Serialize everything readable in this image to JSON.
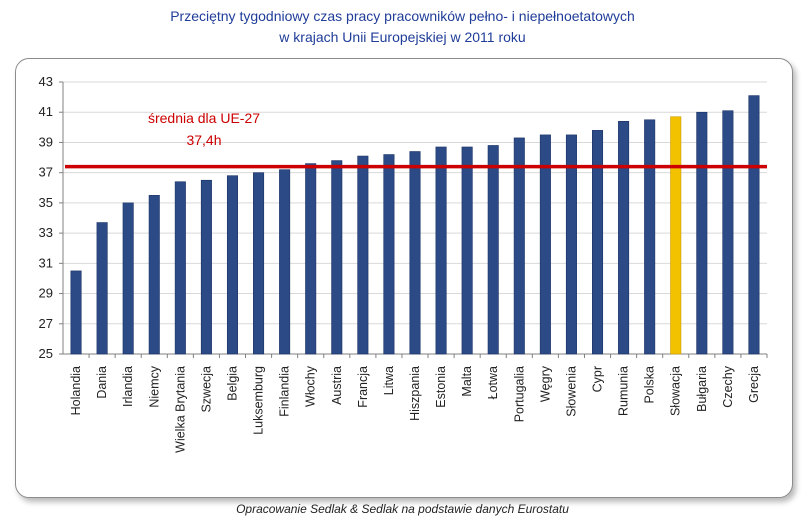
{
  "chart_data": {
    "type": "bar",
    "title_line1": "Przeciętny tygodniowy  czas pracy pracowników  pełno- i niepełnoetatowych",
    "title_line2": "w krajach Unii  Europejskiej  w 2011 roku",
    "categories": [
      "Holandia",
      "Dania",
      "Irlandia",
      "Niemcy",
      "Wielka Brytania",
      "Szwecja",
      "Belgia",
      "Luksemburg",
      "Finlandia",
      "Włochy",
      "Austria",
      "Francja",
      "Litwa",
      "Hiszpania",
      "Estonia",
      "Malta",
      "Łotwa",
      "Portugalia",
      "Węgry",
      "Słowenia",
      "Cypr",
      "Rumunia",
      "Polska",
      "Słowacja",
      "Bułgaria",
      "Czechy",
      "Grecja"
    ],
    "values": [
      30.5,
      33.7,
      35.0,
      35.5,
      36.4,
      36.5,
      36.8,
      37.0,
      37.2,
      37.6,
      37.8,
      38.1,
      38.2,
      38.4,
      38.7,
      38.7,
      38.8,
      39.3,
      39.5,
      39.5,
      39.8,
      40.4,
      40.5,
      40.7,
      41.0,
      41.1,
      42.1
    ],
    "highlight_category": "Słowacja",
    "average": {
      "value": 37.4,
      "label_line1": "średnia dla UE-27",
      "label_line2": "37,4h",
      "color": "#cc0000"
    },
    "ylim": [
      25,
      43
    ],
    "yticks": [
      25,
      27,
      29,
      31,
      33,
      35,
      37,
      39,
      41,
      43
    ],
    "grid": true,
    "bar_color": "#2b4a86",
    "highlight_color": "#f2c200",
    "xlabel": "",
    "ylabel": ""
  },
  "footer": "Opracowanie Sedlak & Sedlak na podstawie danych Eurostatu"
}
